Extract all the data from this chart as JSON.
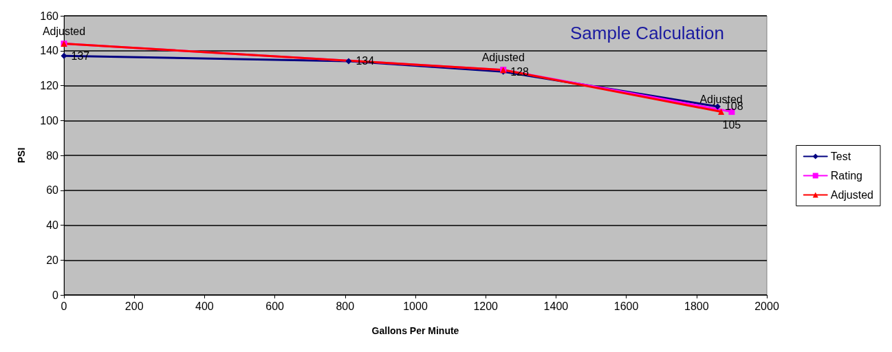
{
  "chart_data": {
    "type": "line",
    "title": "Sample Calculation",
    "xlabel": "Gallons Per Minute",
    "ylabel": "PSI",
    "xlim": [
      0,
      2000
    ],
    "xticks": [
      0,
      200,
      400,
      600,
      800,
      1000,
      1200,
      1400,
      1600,
      1800,
      2000
    ],
    "ylim": [
      0,
      160
    ],
    "yticks": [
      0,
      20,
      40,
      60,
      80,
      100,
      120,
      140,
      160
    ],
    "grid": "y",
    "legend": "right",
    "series": [
      {
        "name": "Test",
        "color": "#000080",
        "marker": "diamond",
        "x": [
          0,
          810,
          1250,
          1860
        ],
        "values": [
          137,
          134,
          128,
          108
        ],
        "value_labels": [
          "137",
          "134",
          "128",
          "108"
        ]
      },
      {
        "name": "Rating",
        "color": "#ff00ff",
        "marker": "square",
        "x": [
          0,
          1250,
          1900
        ],
        "values": [
          144,
          129,
          105
        ],
        "value_labels": [
          null,
          null,
          "105"
        ]
      },
      {
        "name": "Adjusted",
        "color": "#ff0000",
        "marker": "triangle",
        "x": [
          0,
          1250,
          1870
        ],
        "values": [
          144,
          129,
          105
        ],
        "value_labels": [
          "Adjusted",
          "Adjusted",
          "Adjusted"
        ]
      }
    ]
  }
}
